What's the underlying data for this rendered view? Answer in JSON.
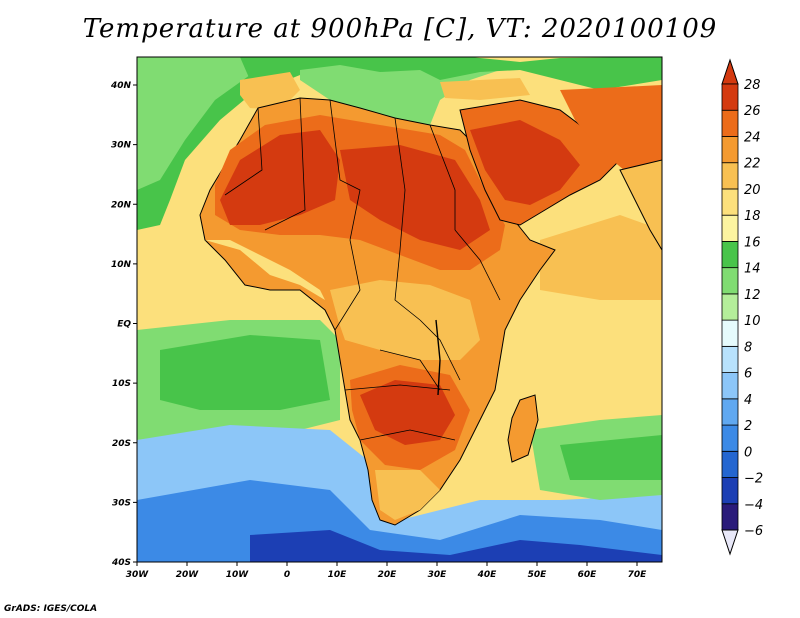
{
  "title": "Temperature at 900hPa [C], VT: 2020100109",
  "credit": "GrADS: IGES/COLA",
  "map": {
    "lon_range": [
      -30,
      75
    ],
    "lat_range": [
      -40,
      45
    ],
    "lat_labels": [
      "40N",
      "30N",
      "20N",
      "10N",
      "EQ",
      "10S",
      "20S",
      "30S",
      "40S"
    ],
    "lon_labels": [
      "30W",
      "20W",
      "10W",
      "0",
      "10E",
      "20E",
      "30E",
      "40E",
      "50E",
      "60E",
      "70E"
    ]
  },
  "colorbar": {
    "levels": [
      "28",
      "26",
      "24",
      "22",
      "20",
      "18",
      "16",
      "14",
      "12",
      "10",
      "8",
      "6",
      "4",
      "2",
      "0",
      "−2",
      "−4",
      "−6"
    ],
    "colors": [
      "#2a1b7a",
      "#1c3fb4",
      "#2466d0",
      "#3c8ae6",
      "#60a8f0",
      "#8cc6f8",
      "#b8e2fc",
      "#e6fbfc",
      "#b4ee9a",
      "#80dc72",
      "#48c44a",
      "#fcf4a0",
      "#fce07c",
      "#f8c052",
      "#f49a30",
      "#ec6c1a",
      "#d43a10"
    ]
  },
  "colors": {
    "ocean_tropical": "#fce07c",
    "ocean_north": "#48c44a",
    "ocean_south_mid": "#8cc6f8",
    "ocean_south_cold": "#3c8ae6",
    "land": "#f49a30",
    "sahara": "#d43a10",
    "border": "#000000"
  }
}
